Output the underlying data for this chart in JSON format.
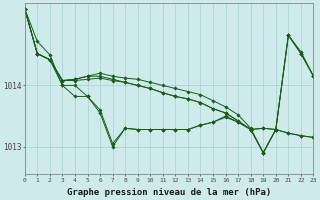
{
  "bg_color": "#ceeaea",
  "grid_color": "#a8d0d0",
  "line_color": "#1a5c1a",
  "marker_color": "#1a5c1a",
  "xlabel": "Graphe pression niveau de la mer (hPa)",
  "xlabel_fontsize": 6.5,
  "xtick_labels": [
    "0",
    "1",
    "2",
    "3",
    "4",
    "5",
    "6",
    "7",
    "8",
    "9",
    "10",
    "11",
    "12",
    "13",
    "14",
    "15",
    "16",
    "17",
    "18",
    "19",
    "20",
    "21",
    "22",
    "23"
  ],
  "ytick_values": [
    1013,
    1014
  ],
  "ylim": [
    1012.55,
    1015.35
  ],
  "xlim": [
    0,
    23
  ],
  "series": [
    [
      1015.25,
      1014.72,
      1014.5,
      1014.0,
      1013.82,
      1013.82,
      1013.55,
      1013.0,
      1013.3,
      1013.28,
      1013.28,
      1013.28,
      1013.28,
      1013.28,
      1013.35,
      1013.4,
      1013.48,
      1013.4,
      1013.28,
      1013.3,
      1013.28,
      1013.22,
      1013.18,
      1013.15
    ],
    [
      1015.25,
      1014.52,
      1014.42,
      1014.0,
      1014.0,
      1013.82,
      1013.6,
      1013.05,
      1013.3,
      1013.28,
      1013.28,
      1013.28,
      1013.28,
      1013.28,
      1013.35,
      1013.4,
      1013.5,
      1013.4,
      1013.28,
      1013.3,
      1013.28,
      1013.22,
      1013.18,
      1013.15
    ],
    [
      1015.25,
      1014.52,
      1014.42,
      1014.08,
      1014.08,
      1014.1,
      1014.12,
      1014.08,
      1014.05,
      1014.0,
      1013.95,
      1013.88,
      1013.82,
      1013.78,
      1013.72,
      1013.62,
      1013.55,
      1013.42,
      1013.28,
      1012.9,
      1013.28,
      1014.82,
      1014.52,
      1014.15
    ],
    [
      1015.25,
      1014.52,
      1014.42,
      1014.08,
      1014.1,
      1014.15,
      1014.15,
      1014.1,
      1014.05,
      1014.0,
      1013.95,
      1013.88,
      1013.82,
      1013.78,
      1013.72,
      1013.62,
      1013.55,
      1013.42,
      1013.28,
      1012.9,
      1013.28,
      1014.82,
      1014.52,
      1014.15
    ],
    [
      1015.25,
      1014.52,
      1014.42,
      1014.08,
      1014.1,
      1014.15,
      1014.2,
      1014.15,
      1014.12,
      1014.1,
      1014.05,
      1014.0,
      1013.95,
      1013.9,
      1013.85,
      1013.75,
      1013.65,
      1013.52,
      1013.3,
      1012.9,
      1013.28,
      1014.82,
      1014.55,
      1014.15
    ]
  ]
}
